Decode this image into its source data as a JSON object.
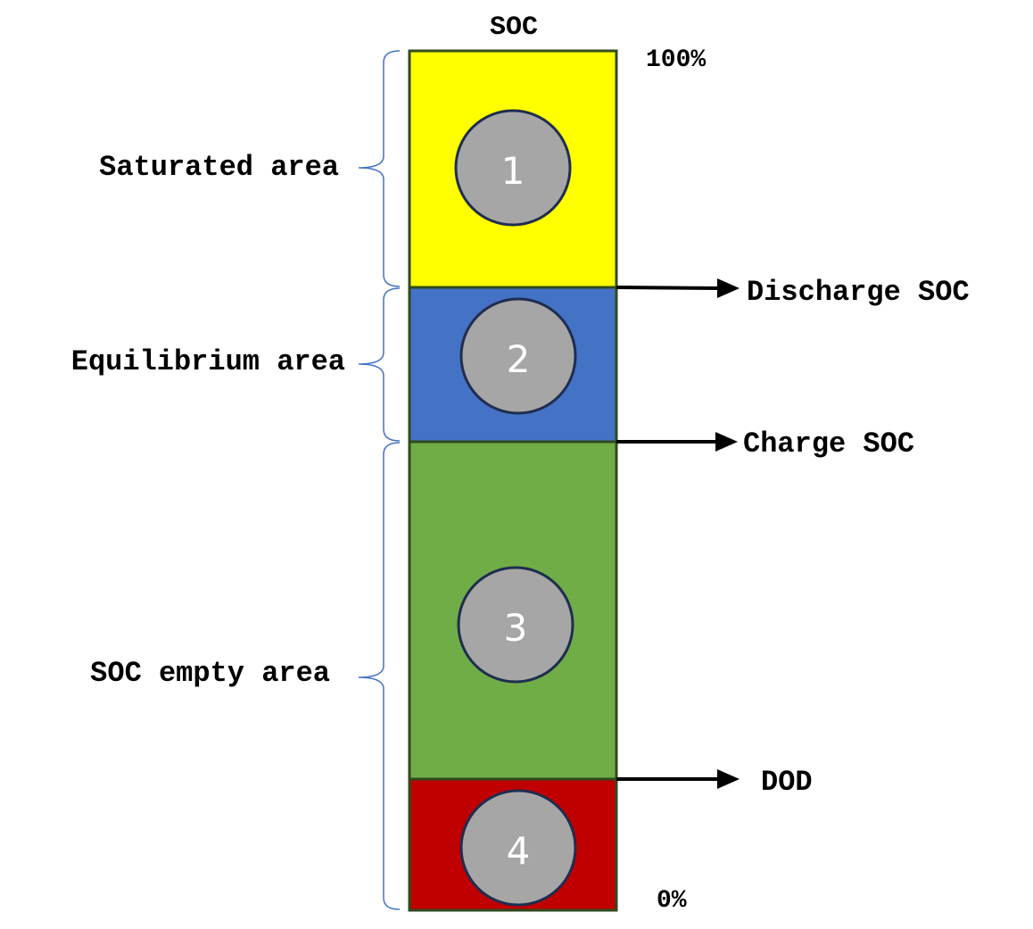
{
  "bar": {
    "title": "SOC",
    "top_label": "100%",
    "bottom_label": "0%"
  },
  "segments": [
    {
      "number": "1",
      "color": "#ffff00"
    },
    {
      "number": "2",
      "color": "#4472c4"
    },
    {
      "number": "3",
      "color": "#70ad47"
    },
    {
      "number": "4",
      "color": "#c00000"
    }
  ],
  "areas": [
    {
      "label": "Saturated area"
    },
    {
      "label": "Equilibrium area"
    },
    {
      "label": "SOC empty area"
    }
  ],
  "thresholds": [
    {
      "label": "Discharge SOC"
    },
    {
      "label": "Charge SOC"
    },
    {
      "label": "DOD"
    }
  ],
  "colors": {
    "bar_border": "#2f4a1f",
    "marker_fill": "#a6a6a6",
    "marker_border": "#1f2d4f",
    "brace": "#4472c4"
  }
}
